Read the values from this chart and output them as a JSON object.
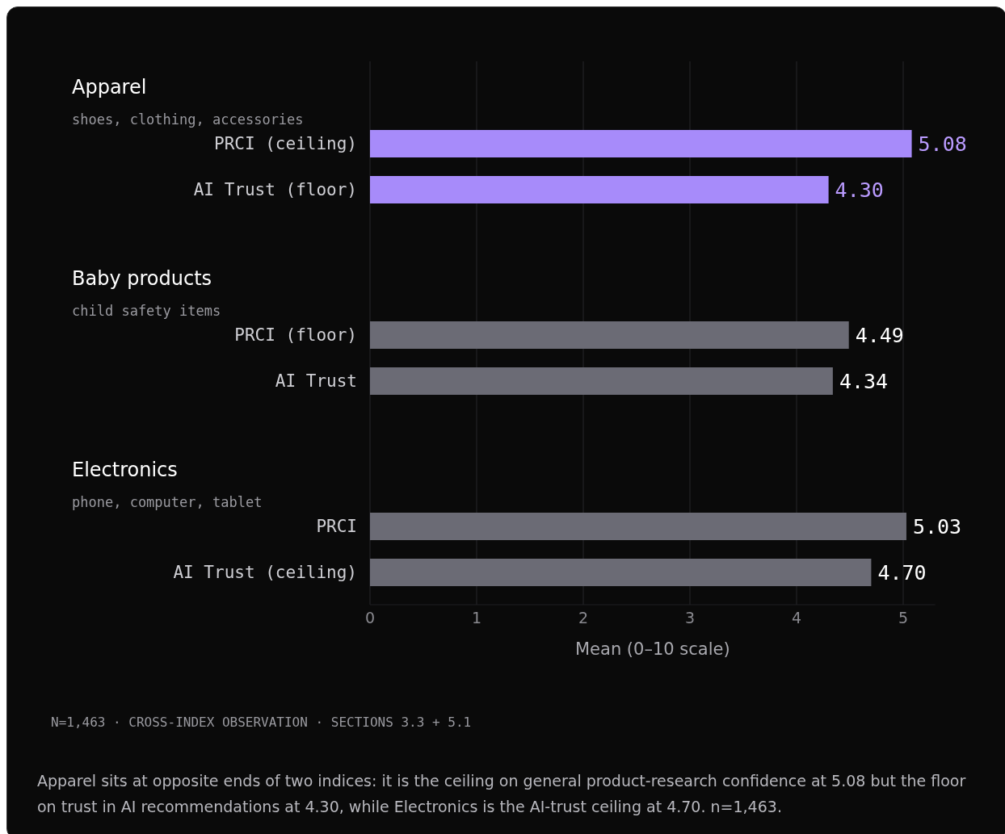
{
  "chart_data": [
    {
      "type": "bar",
      "orientation": "horizontal",
      "title": "Apparel",
      "subtitle": "shoes, clothing, accessories",
      "categories": [
        "PRCI (ceiling)",
        "AI Trust (floor)"
      ],
      "values": [
        5.08,
        4.3
      ],
      "value_labels": [
        "5.08",
        "4.30"
      ],
      "color": "#a78bfa",
      "grid": "x",
      "tick_labels": "y"
    },
    {
      "type": "bar",
      "orientation": "horizontal",
      "title": "Baby products",
      "subtitle": "child safety items",
      "categories": [
        "PRCI (floor)",
        "AI Trust"
      ],
      "values": [
        4.49,
        4.34
      ],
      "value_labels": [
        "4.49",
        "4.34"
      ],
      "color": "#6b6b75",
      "grid": "x",
      "tick_labels": "y"
    },
    {
      "type": "bar",
      "orientation": "horizontal",
      "title": "Electronics",
      "subtitle": "phone, computer, tablet",
      "categories": [
        "PRCI",
        "AI Trust (ceiling)"
      ],
      "values": [
        5.03,
        4.7
      ],
      "value_labels": [
        "5.03",
        "4.70"
      ],
      "color": "#6b6b75",
      "xlim": [
        0,
        5.3
      ],
      "xticks": [
        0,
        1,
        2,
        3,
        4,
        5
      ],
      "grid": "x",
      "xlabel": "Mean (0–10 scale)",
      "annotations": [
        "N=1,463 · CROSS-INDEX OBSERVATION · SECTIONS 3.3 + 5.1",
        "Apparel sits at opposite ends of two indices: it is the ceiling on general product-research confidence at 5.08 but the floor on trust in AI recommendations at 4.30, while Electronics is the AI-trust ceiling at 4.70. n=1,463."
      ]
    }
  ]
}
